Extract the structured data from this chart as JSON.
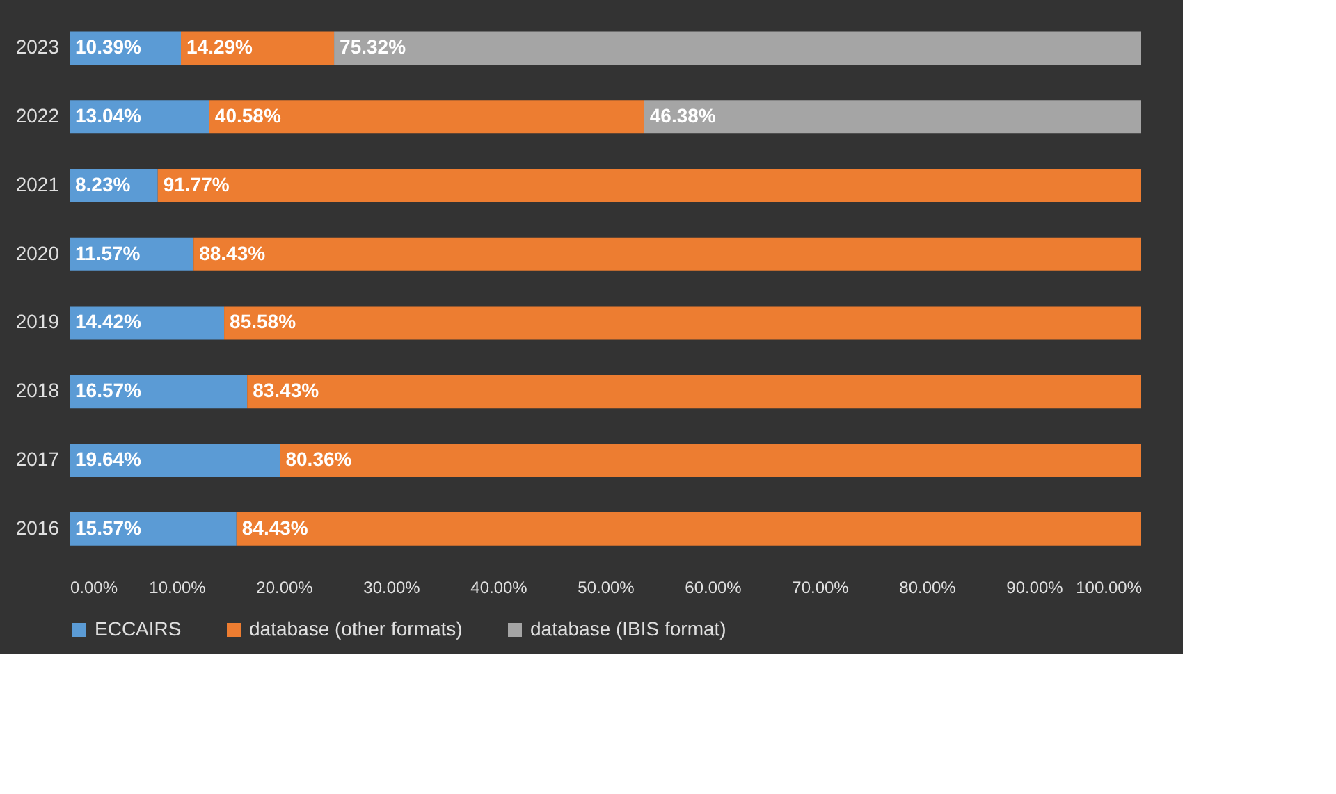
{
  "chart_data": {
    "type": "bar",
    "orientation": "horizontal",
    "stacked": true,
    "categories": [
      "2023",
      "2022",
      "2021",
      "2020",
      "2019",
      "2018",
      "2017",
      "2016"
    ],
    "series": [
      {
        "name": "ECCAIRS",
        "color": "#5b9bd5",
        "values": [
          10.39,
          13.04,
          8.23,
          11.57,
          14.42,
          16.57,
          19.64,
          15.57
        ],
        "value_labels": [
          "10.39%",
          "13.04%",
          "8.23%",
          "11.57%",
          "14.42%",
          "16.57%",
          "19.64%",
          "15.57%"
        ]
      },
      {
        "name": "database (other formats)",
        "color": "#ed7d31",
        "values": [
          14.29,
          40.58,
          91.77,
          88.43,
          85.58,
          83.43,
          80.36,
          84.43
        ],
        "value_labels": [
          "14.29%",
          "40.58%",
          "91.77%",
          "88.43%",
          "85.58%",
          "83.43%",
          "80.36%",
          "84.43%"
        ]
      },
      {
        "name": "database (IBIS format)",
        "color": "#a5a5a5",
        "values": [
          75.32,
          46.38,
          null,
          null,
          null,
          null,
          null,
          null
        ],
        "value_labels": [
          "75.32%",
          "46.38%",
          null,
          null,
          null,
          null,
          null,
          null
        ]
      }
    ],
    "xlim": [
      0,
      100
    ],
    "xticks": [
      {
        "value": 0,
        "label": "0.00%"
      },
      {
        "value": 10,
        "label": "10.00%"
      },
      {
        "value": 20,
        "label": "20.00%"
      },
      {
        "value": 30,
        "label": "30.00%"
      },
      {
        "value": 40,
        "label": "40.00%"
      },
      {
        "value": 50,
        "label": "50.00%"
      },
      {
        "value": 60,
        "label": "60.00%"
      },
      {
        "value": 70,
        "label": "70.00%"
      },
      {
        "value": 80,
        "label": "80.00%"
      },
      {
        "value": 90,
        "label": "90.00%"
      },
      {
        "value": 100,
        "label": "100.00%"
      }
    ],
    "grid": false,
    "legend": "bottom"
  }
}
